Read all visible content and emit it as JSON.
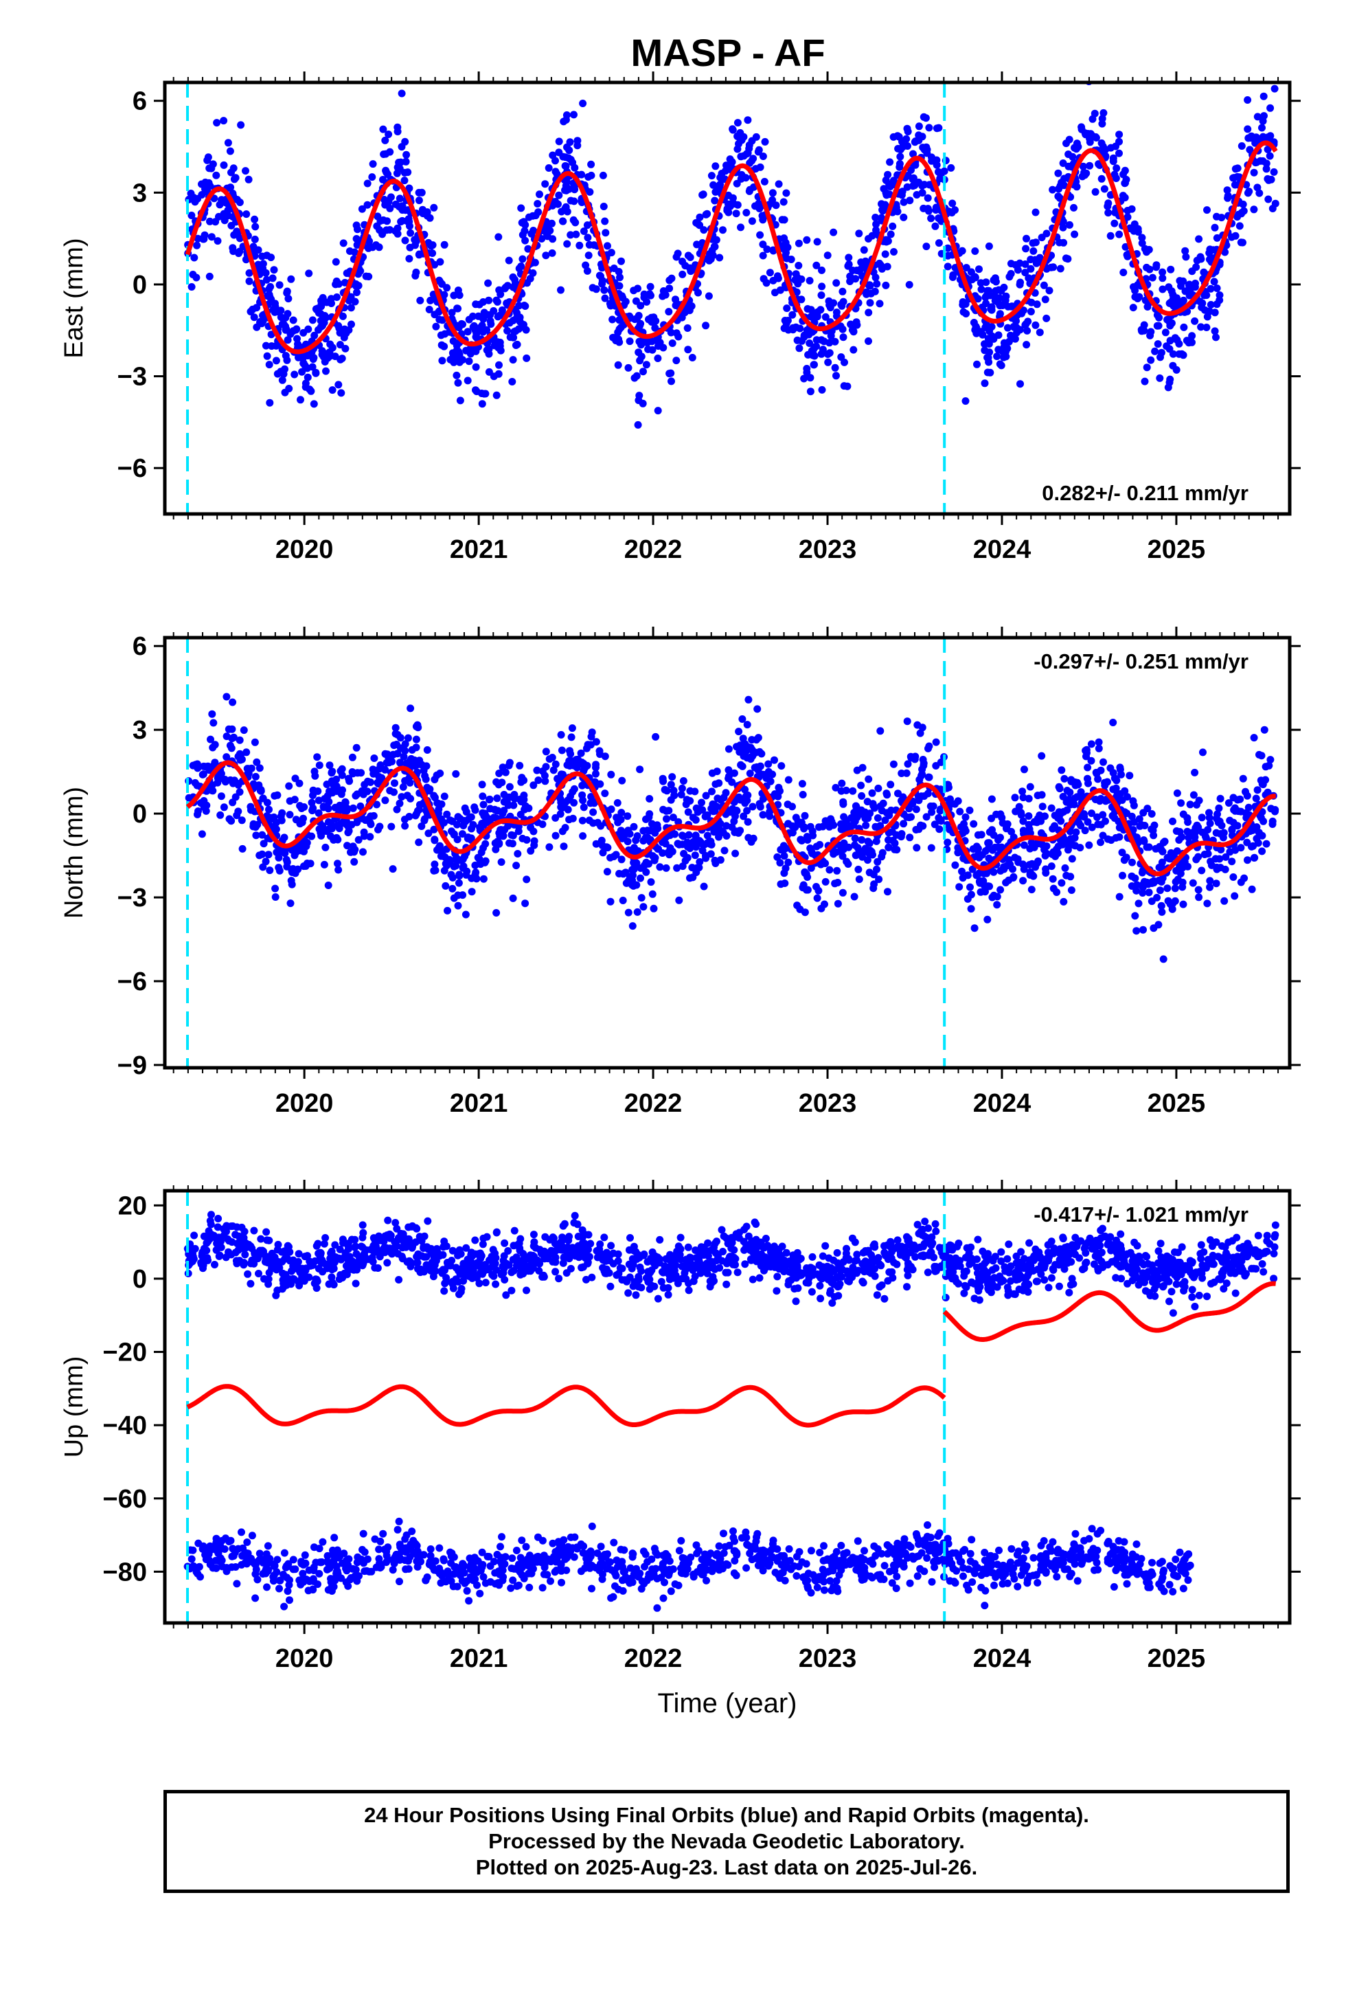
{
  "title": "MASP - AF",
  "colors": {
    "final_orbits": "#0000ff",
    "model_fit": "#ff0000",
    "offset_marker": "#00e5ff",
    "frame": "#000000"
  },
  "chart_data": [
    {
      "type": "scatter",
      "panel": "east",
      "ylabel": "East (mm)",
      "xlabel": "",
      "xlim": [
        2019.2,
        2025.65
      ],
      "ylim": [
        -7.5,
        6.6
      ],
      "yticks": [
        -6,
        -3,
        0,
        3,
        6
      ],
      "xticks": [
        2020,
        2021,
        2022,
        2023,
        2024,
        2025
      ],
      "rate_text": "0.282+/- 0.211 mm/yr",
      "offsets": [
        2019.33,
        2023.67
      ],
      "series": [
        {
          "kind": "points",
          "color": "#0000ff",
          "model": {
            "start": 2019.33,
            "end": 2025.57,
            "offset": 0.0,
            "trend": 0.25,
            "amp1": 2.7,
            "amp2": 0.4,
            "phase2": 1.2,
            "noise": 0.95,
            "count": 2100
          }
        },
        {
          "kind": "fit",
          "color": "#ff0000",
          "model": {
            "start": 2019.33,
            "end": 2025.57,
            "offset": 0.0,
            "trend": 0.25,
            "amp1": 2.7,
            "amp2": 0.4,
            "phase2": 1.2
          }
        }
      ]
    },
    {
      "type": "scatter",
      "panel": "north",
      "ylabel": "North (mm)",
      "xlabel": "",
      "xlim": [
        2019.2,
        2025.65
      ],
      "ylim": [
        -9.1,
        6.3
      ],
      "yticks": [
        -9,
        -6,
        -3,
        0,
        3,
        6
      ],
      "xticks": [
        2020,
        2021,
        2022,
        2023,
        2024,
        2025
      ],
      "rate_text": "-0.297+/- 0.251 mm/yr",
      "offsets": [
        2019.33,
        2023.67
      ],
      "series": [
        {
          "kind": "points",
          "color": "#0000ff",
          "model": {
            "start": 2019.33,
            "end": 2025.57,
            "offset": 0.3,
            "trend": -0.2,
            "amp1": 1.1,
            "amp2": 0.6,
            "phase2": 0.4,
            "noise": 1.0,
            "count": 2100
          }
        },
        {
          "kind": "fit",
          "color": "#ff0000",
          "model": {
            "start": 2019.33,
            "end": 2025.57,
            "offset": 0.3,
            "trend": -0.2,
            "amp1": 1.1,
            "amp2": 0.6,
            "phase2": 0.4
          }
        }
      ]
    },
    {
      "type": "scatter",
      "panel": "up",
      "ylabel": "Up (mm)",
      "xlabel": "Time (year)",
      "xlim": [
        2019.2,
        2025.65
      ],
      "ylim": [
        -94,
        24
      ],
      "yticks": [
        -80,
        -60,
        -40,
        -20,
        0,
        20
      ],
      "xticks": [
        2020,
        2021,
        2022,
        2023,
        2024,
        2025
      ],
      "rate_text": "-0.417+/- 1.021 mm/yr",
      "offsets": [
        2019.33,
        2023.67
      ],
      "series": [
        {
          "kind": "points",
          "color": "#0000ff",
          "model": {
            "start": 2019.33,
            "end": 2025.57,
            "offset": 6.0,
            "trend": -0.4,
            "amp1": 3.0,
            "amp2": 1.0,
            "phase2": 0.8,
            "noise": 3.3,
            "count": 1700
          }
        },
        {
          "kind": "points",
          "color": "#0000ff",
          "model": {
            "start": 2019.33,
            "end": 2025.08,
            "offset": -78.0,
            "trend": 0.1,
            "amp1": 2.5,
            "amp2": 1.0,
            "phase2": 0.8,
            "noise": 3.0,
            "count": 1150
          }
        },
        {
          "kind": "fit",
          "color": "#ff0000",
          "model": {
            "start": 2019.33,
            "end": 2023.67,
            "offset": -35.0,
            "trend": -0.1,
            "amp1": 4.0,
            "amp2": 2.0,
            "phase2": 0.5
          }
        },
        {
          "kind": "fit",
          "color": "#ff0000",
          "model": {
            "start": 2023.67,
            "end": 2025.57,
            "offset": -23.0,
            "trend": 2.5,
            "amp1": 4.5,
            "amp2": 2.0,
            "phase2": 0.5
          }
        }
      ]
    }
  ],
  "footer": {
    "line1": "24 Hour Positions Using Final Orbits (blue) and Rapid Orbits (magenta).",
    "line2": "Processed by the Nevada Geodetic Laboratory.",
    "line3": "Plotted on 2025-Aug-23. Last data on 2025-Jul-26."
  }
}
